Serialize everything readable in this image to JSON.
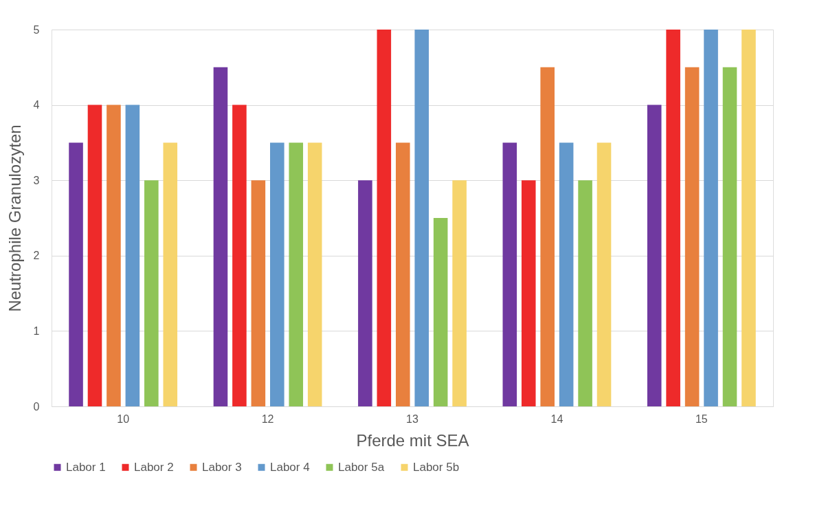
{
  "chart_data": {
    "type": "bar",
    "xlabel": "Pferde mit SEA",
    "ylabel": "Neutrophile Granulozyten",
    "categories": [
      "10",
      "12",
      "13",
      "14",
      "15"
    ],
    "series": [
      {
        "name": "Labor 1",
        "color": "#7039a0",
        "values": [
          3.5,
          4.5,
          3,
          3.5,
          4
        ]
      },
      {
        "name": "Labor 2",
        "color": "#ee2a2a",
        "values": [
          4,
          4,
          5,
          3,
          5
        ]
      },
      {
        "name": "Labor 3",
        "color": "#e8803e",
        "values": [
          4,
          3,
          3.5,
          4.5,
          4.5
        ]
      },
      {
        "name": "Labor 4",
        "color": "#6399cc",
        "values": [
          4,
          3.5,
          5,
          3.5,
          5
        ]
      },
      {
        "name": "Labor 5a",
        "color": "#8fc457",
        "values": [
          3,
          3.5,
          2.5,
          3,
          4.5
        ]
      },
      {
        "name": "Labor 5b",
        "color": "#f6d46c",
        "values": [
          3.5,
          3.5,
          3,
          3.5,
          5
        ]
      }
    ],
    "ylim": [
      0,
      5
    ],
    "yticks": [
      0,
      1,
      2,
      3,
      4,
      5
    ],
    "grid": "y",
    "legend": "bottom"
  }
}
